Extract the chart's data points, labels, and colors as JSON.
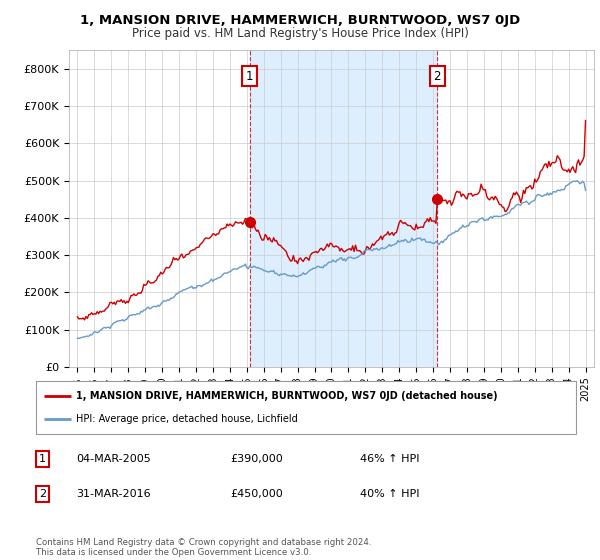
{
  "title": "1, MANSION DRIVE, HAMMERWICH, BURNTWOOD, WS7 0JD",
  "subtitle": "Price paid vs. HM Land Registry's House Price Index (HPI)",
  "legend_line1": "1, MANSION DRIVE, HAMMERWICH, BURNTWOOD, WS7 0JD (detached house)",
  "legend_line2": "HPI: Average price, detached house, Lichfield",
  "transaction1_date": "04-MAR-2005",
  "transaction1_price": 390000,
  "transaction1_hpi": "46% ↑ HPI",
  "transaction2_date": "31-MAR-2016",
  "transaction2_price": 450000,
  "transaction2_hpi": "40% ↑ HPI",
  "footer": "Contains HM Land Registry data © Crown copyright and database right 2024.\nThis data is licensed under the Open Government Licence v3.0.",
  "red_color": "#cc0000",
  "blue_color": "#6699cc",
  "shade_color": "#ddeeff",
  "marker_color": "#cc0000",
  "ylim": [
    0,
    850000
  ],
  "yticks": [
    0,
    100000,
    200000,
    300000,
    400000,
    500000,
    600000,
    700000,
    800000
  ],
  "ytick_labels": [
    "£0",
    "£100K",
    "£200K",
    "£300K",
    "£400K",
    "£500K",
    "£600K",
    "£700K",
    "£800K"
  ],
  "transaction1_year": 2005.17,
  "transaction2_year": 2016.25
}
